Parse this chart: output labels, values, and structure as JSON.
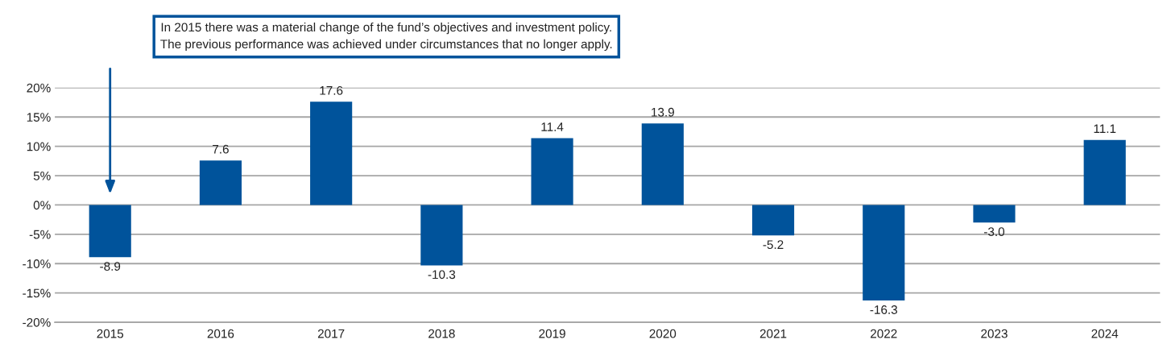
{
  "chart_data": {
    "type": "bar",
    "categories": [
      "2015",
      "2016",
      "2017",
      "2018",
      "2019",
      "2020",
      "2021",
      "2022",
      "2023",
      "2024"
    ],
    "values": [
      -8.9,
      7.6,
      17.6,
      -10.3,
      11.4,
      13.9,
      -5.2,
      -16.3,
      -3.0,
      11.1
    ],
    "value_labels": [
      "-8.9",
      "7.6",
      "17.6",
      "-10.3",
      "11.4",
      "13.9",
      "-5.2",
      "-16.3",
      "-3.0",
      "11.1"
    ],
    "color": "#00539b",
    "ylim": [
      -20,
      20
    ],
    "yticks": [
      {
        "value": -20,
        "label": "-20%"
      },
      {
        "value": -15,
        "label": "-15%"
      },
      {
        "value": -10,
        "label": "-10%"
      },
      {
        "value": -5,
        "label": "-5%"
      },
      {
        "value": 0,
        "label": "0%"
      },
      {
        "value": 5,
        "label": "5%"
      },
      {
        "value": 10,
        "label": "10%"
      },
      {
        "value": 15,
        "label": "15%"
      },
      {
        "value": 20,
        "label": "20%"
      }
    ],
    "grid": "y",
    "legend": false,
    "annotations": [
      "In 2015 there was a material change of the fund’s objectives and investment policy.\nThe previous performance was achieved under circumstances that no longer apply."
    ]
  }
}
